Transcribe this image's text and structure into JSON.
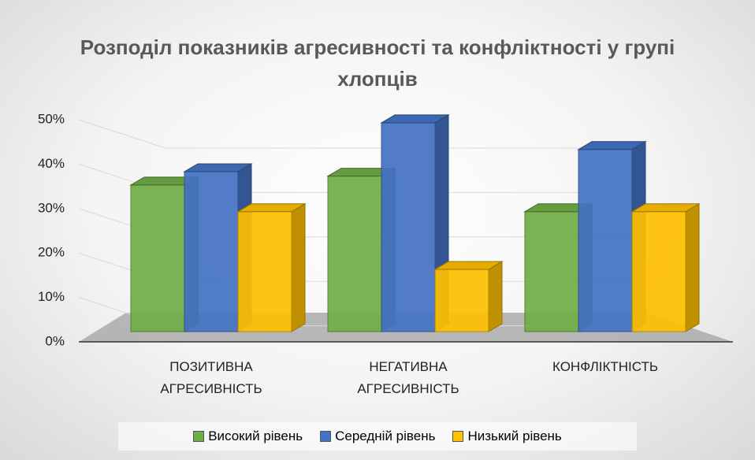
{
  "chart_data": {
    "type": "bar3d",
    "title": "Розподіл показників агресивності та конфліктності у групі хлопців",
    "categories": [
      "ПОЗИТИВНА АГРЕСИВНІСТЬ",
      "НЕГАТИВНА АГРЕСИВНІСТЬ",
      "КОНФЛІКТНІСТЬ"
    ],
    "series": [
      {
        "name": "Високий рівень",
        "color": "#70ad47",
        "values": [
          33,
          35,
          27
        ]
      },
      {
        "name": "Середній рівень",
        "color": "#4472c4",
        "values": [
          36,
          47,
          41
        ]
      },
      {
        "name": "Низький рівень",
        "color": "#ffc000",
        "values": [
          27,
          14,
          27
        ]
      }
    ],
    "ylim": [
      0,
      50
    ],
    "yticks": [
      {
        "value": 0,
        "label": "0%"
      },
      {
        "value": 10,
        "label": "10%"
      },
      {
        "value": 20,
        "label": "20%"
      },
      {
        "value": 30,
        "label": "30%"
      },
      {
        "value": 40,
        "label": "40%"
      },
      {
        "value": 50,
        "label": "50%"
      }
    ],
    "grid": true,
    "legend": "bottom"
  }
}
